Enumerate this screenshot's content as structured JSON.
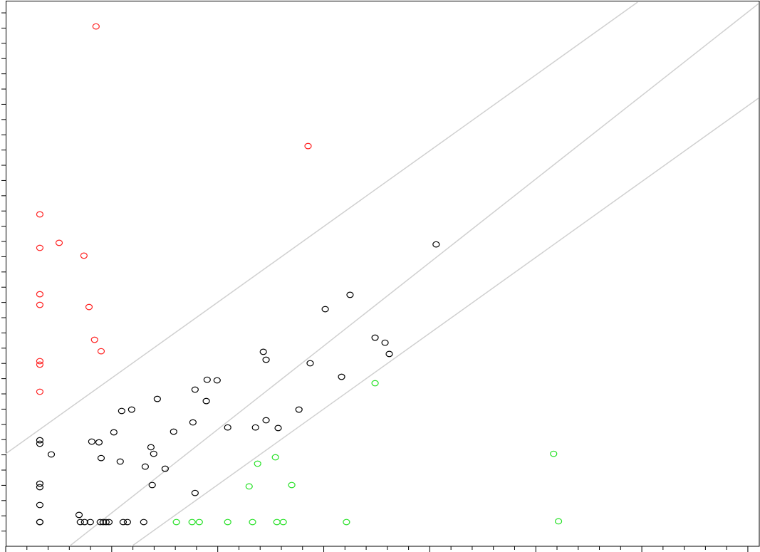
{
  "chart_data": {
    "type": "scatter",
    "xlim": [
      0,
      35.54
    ],
    "ylim": [
      0,
      35.75
    ],
    "xticks": [
      0,
      1,
      2,
      3,
      4,
      5,
      6,
      7,
      8,
      9,
      10,
      11,
      12,
      13,
      14,
      15,
      16,
      17,
      18,
      19,
      20,
      21,
      22,
      23,
      24,
      25,
      26,
      27,
      28,
      29,
      30,
      31,
      32,
      33,
      34,
      35
    ],
    "yticks": [
      1,
      2,
      3,
      4,
      5,
      6,
      7,
      8,
      9,
      10,
      11,
      12,
      13,
      14,
      15,
      16,
      17,
      18,
      19,
      20,
      21,
      22,
      23,
      24,
      25,
      26,
      27,
      28,
      29,
      30,
      31,
      32,
      33,
      34,
      35
    ],
    "lines": [
      {
        "color": "#d0d0d0",
        "x": [
          0,
          29.8
        ],
        "y": [
          6.07,
          35.7
        ]
      },
      {
        "color": "#d0d0d0",
        "x": [
          3.0,
          35.5
        ],
        "y": [
          0,
          35.6
        ]
      },
      {
        "color": "#d0d0d0",
        "x": [
          5.94,
          35.5
        ],
        "y": [
          0,
          29.4
        ]
      }
    ],
    "series": [
      {
        "color": "#ff2020",
        "x": [
          4.26,
          14.26,
          1.61,
          1.61,
          2.52,
          3.69,
          1.61,
          1.61,
          3.93,
          4.19,
          4.5,
          1.61,
          1.61,
          1.61
        ],
        "values": [
          34.11,
          26.26,
          21.78,
          19.58,
          19.91,
          19.07,
          16.54,
          15.84,
          15.7,
          13.55,
          12.8,
          12.15,
          11.92,
          10.14
        ]
      },
      {
        "color": "#20e020",
        "x": [
          17.42,
          25.84,
          11.88,
          12.72,
          11.48,
          13.49,
          26.07,
          8.05,
          8.79,
          9.13,
          10.47,
          11.64,
          12.79,
          13.09,
          16.07
        ],
        "values": [
          10.7,
          6.07,
          5.42,
          5.84,
          3.93,
          4.02,
          1.64,
          1.59,
          1.59,
          1.59,
          1.59,
          1.59,
          1.59,
          1.59,
          1.59
        ]
      },
      {
        "color": "#000000",
        "x": [
          20.3,
          16.24,
          15.07,
          17.42,
          17.89,
          18.09,
          12.15,
          12.28,
          14.36,
          15.84,
          9.5,
          9.97,
          8.93,
          7.15,
          9.46,
          5.47,
          5.94,
          13.83,
          12.28,
          8.83,
          10.47,
          11.78,
          12.85,
          7.92,
          5.1,
          1.61,
          1.61,
          4.06,
          4.4,
          6.85,
          6.98,
          2.15,
          4.5,
          5.4,
          6.58,
          7.52,
          1.61,
          1.61,
          6.91,
          8.93,
          1.61,
          3.46,
          1.61,
          1.61,
          3.52,
          3.72,
          3.99,
          4.46,
          4.6,
          4.73,
          4.87,
          5.54,
          5.74,
          6.51
        ],
        "values": [
          19.81,
          16.5,
          15.56,
          13.69,
          13.36,
          12.62,
          12.76,
          12.24,
          12.01,
          11.12,
          10.93,
          10.89,
          10.28,
          9.67,
          9.53,
          8.88,
          8.97,
          8.97,
          8.27,
          8.13,
          7.8,
          7.8,
          7.76,
          7.52,
          7.48,
          6.96,
          6.73,
          6.87,
          6.82,
          6.5,
          6.07,
          6.03,
          5.79,
          5.56,
          5.23,
          5.09,
          4.11,
          3.88,
          4.02,
          3.5,
          2.71,
          2.06,
          1.59,
          1.59,
          1.59,
          1.59,
          1.59,
          1.59,
          1.59,
          1.59,
          1.59,
          1.59,
          1.59,
          1.59
        ]
      }
    ]
  }
}
